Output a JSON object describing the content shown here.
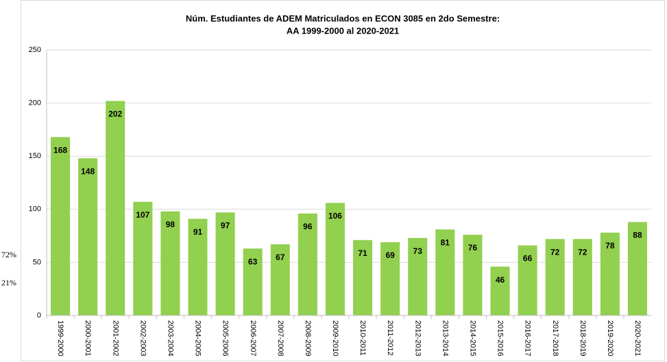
{
  "chart_data": {
    "type": "bar",
    "title": [
      "Núm. Estudiantes de ADEM Matriculados en ECON 3085 en 2do Semestre:",
      "AA 1999-2000 al 2020-2021"
    ],
    "annotations": [
      "72%",
      "21%"
    ],
    "categories": [
      "1999-2000",
      "2000-2001",
      "2001-2002",
      "2002-2003",
      "2003-2004",
      "2004-2005",
      "2005-2006",
      "2006-2007",
      "2007-2008",
      "2008-2009",
      "2009-2010",
      "2010-2011",
      "2011-2012",
      "2012-2013",
      "2013-2014",
      "2014-2015",
      "2015-2016",
      "2016-2017",
      "2017-2018",
      "2018-2019",
      "2019-2020",
      "2020-2021"
    ],
    "values": [
      168,
      148,
      202,
      107,
      98,
      91,
      97,
      63,
      67,
      96,
      106,
      71,
      69,
      73,
      81,
      76,
      46,
      66,
      72,
      72,
      78,
      88
    ],
    "color": "#92d050",
    "ylim": [
      0,
      250
    ],
    "yticks": [
      0,
      50,
      100,
      150,
      200,
      250
    ],
    "grid": true
  }
}
